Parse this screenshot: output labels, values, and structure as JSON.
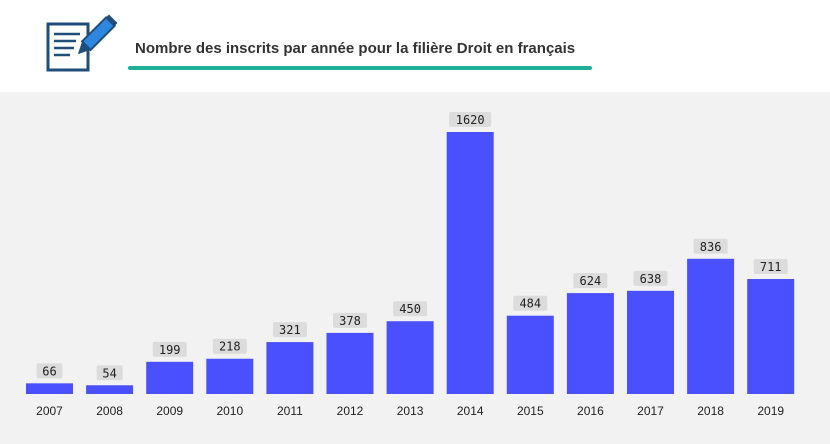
{
  "header": {
    "icon": "document-pen-icon",
    "title": "Nombre des inscrits  par année pour la filière Droit en français"
  },
  "colors": {
    "bar": "#4b50ff",
    "accent_underline": "#1fb09a",
    "plot_background": "#f2f2f2",
    "label_chip": "#dcdcdc",
    "icon_blue": "#1f4e79"
  },
  "chart_data": {
    "type": "bar",
    "title": "Nombre des inscrits  par année pour la filière Droit en français",
    "xlabel": "",
    "ylabel": "",
    "categories": [
      "2007",
      "2008",
      "2009",
      "2010",
      "2011",
      "2012",
      "2013",
      "2014",
      "2015",
      "2016",
      "2017",
      "2018",
      "2019"
    ],
    "values": [
      66,
      54,
      199,
      218,
      321,
      378,
      450,
      1620,
      484,
      624,
      638,
      836,
      711
    ],
    "ylim": [
      0,
      1620
    ],
    "grid": false,
    "legend": "none",
    "data_labels": true
  }
}
